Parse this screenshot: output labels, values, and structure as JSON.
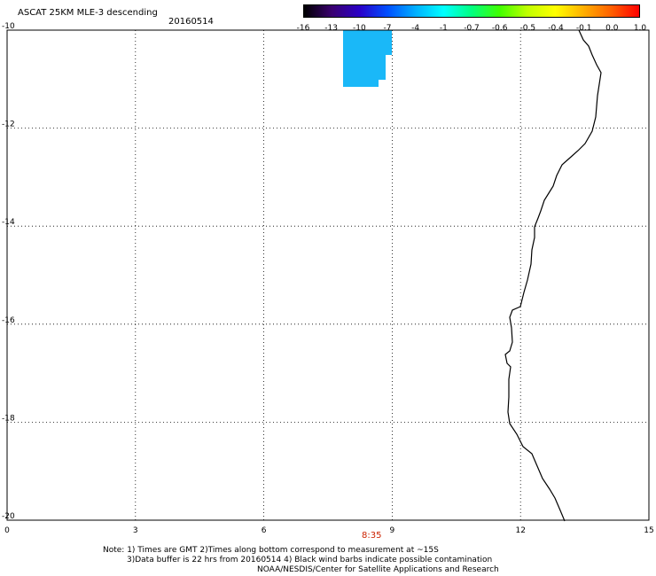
{
  "header": {
    "title": "ASCAT 25KM MLE-3 descending",
    "date": "20160514"
  },
  "colorbar": {
    "ticks": [
      "-16",
      "-13",
      "-10",
      "-7",
      "-4",
      "-1",
      "-0.7",
      "-0.6",
      "-0.5",
      "-0.4",
      "-0.1",
      "0.0",
      "1.0"
    ],
    "colors": [
      "#000000",
      "#3a0070",
      "#2a00c8",
      "#0050ff",
      "#00b0ff",
      "#00ffff",
      "#00ff80",
      "#40ff00",
      "#c0ff00",
      "#ffff00",
      "#ffb000",
      "#ff6000",
      "#ff0000"
    ]
  },
  "map": {
    "lon_ticks": [
      "0",
      "3",
      "6",
      "9",
      "12",
      "15"
    ],
    "lat_ticks": [
      "-10",
      "-12",
      "-14",
      "-16",
      "-18",
      "-20"
    ],
    "lon_range": [
      0,
      15
    ],
    "lat_range": [
      -20,
      -10
    ],
    "swath_color": "#1ab8f8",
    "time_label": "8:35"
  },
  "notes": {
    "line1": "Note: 1) Times are GMT 2)Times along bottom correspond to measurement at ~15S",
    "line2": "3)Data buffer is 22 hrs from 20160514 4) Black wind barbs indicate possible contamination",
    "line3": "NOAA/NESDIS/Center for Satellite Applications and Research"
  }
}
